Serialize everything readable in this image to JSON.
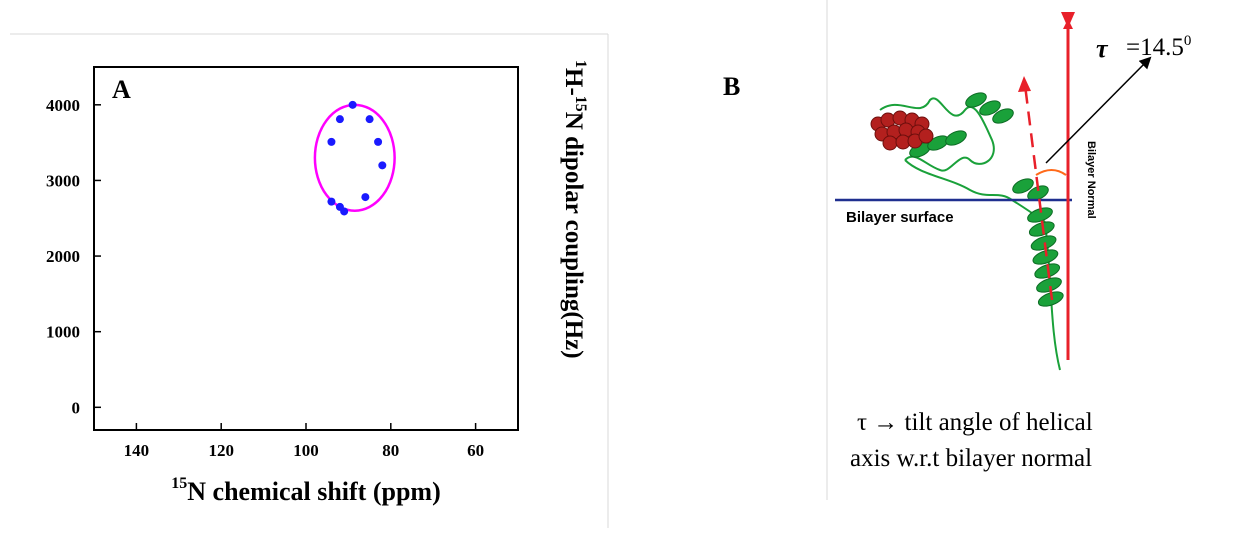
{
  "panel_a": {
    "letter": "A",
    "chart_data": {
      "type": "scatter",
      "xlabel": {
        "sup": "15",
        "text": "N chemical shift (ppm)"
      },
      "ylabel": {
        "sup1": "1",
        "mid": "H-",
        "sup2": "15",
        "text": "N dipolar coupling(Hz)"
      },
      "xlim": [
        150,
        50
      ],
      "ylim": [
        -300,
        4500
      ],
      "xticks": [
        140,
        120,
        100,
        80,
        60
      ],
      "yticks": [
        0,
        1000,
        2000,
        3000,
        4000
      ],
      "x_reversed": true,
      "points": [
        {
          "x": 89,
          "y": 4000
        },
        {
          "x": 92,
          "y": 3810
        },
        {
          "x": 85,
          "y": 3810
        },
        {
          "x": 94,
          "y": 3510
        },
        {
          "x": 83,
          "y": 3510
        },
        {
          "x": 82,
          "y": 3200
        },
        {
          "x": 86,
          "y": 2780
        },
        {
          "x": 94,
          "y": 2720
        },
        {
          "x": 92,
          "y": 2650
        },
        {
          "x": 91,
          "y": 2590
        }
      ],
      "fit_ellipse": {
        "cx": 88.5,
        "cy": 3300,
        "rx": 9.4,
        "ry": 700
      },
      "colors": {
        "points": "#1a1aff",
        "ellipse": "#ff00ff",
        "axis": "#000000"
      }
    }
  },
  "panel_b": {
    "letter": "B",
    "tau_symbol": "τ",
    "tau_value": "=14.5",
    "tau_unit_sup": "0",
    "bilayer_surface_label": "Bilayer surface",
    "bilayer_normal_label": "Bilayer Normal",
    "caption_line1": "τ → tilt angle of helical",
    "caption_line2": "axis w.r.t bilayer normal",
    "colors": {
      "normal_arrow": "#e8202a",
      "surface_line": "#1f2f8f",
      "helix": "#1aa13a",
      "ligand": "#b3201e",
      "angle_arc": "#ff6a1a"
    }
  }
}
